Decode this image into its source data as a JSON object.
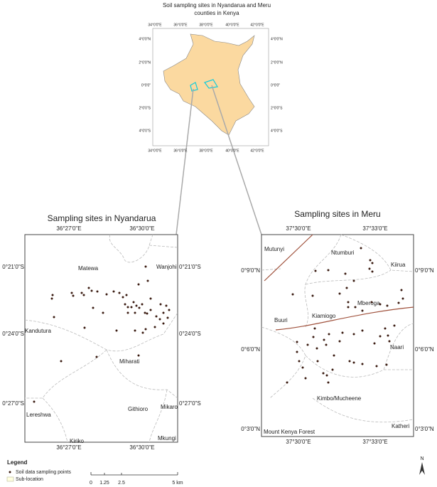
{
  "figure_title": [
    "Soil sampling sites in Nyandarua and Meru",
    "counties in Kenya"
  ],
  "inset": {
    "lat_labels": [
      "4°0'0\"N",
      "2°0'0\"N",
      "0°0'0\"",
      "2°0'0\"S",
      "4°0'0\"S"
    ],
    "lon_labels": [
      "34°0'0\"E",
      "36°0'0\"E",
      "38°0'0\"E",
      "40°0'0\"E",
      "42°0'0\"E"
    ]
  },
  "nyandarua": {
    "title": "Sampling sites in Nyandarua",
    "lon_labels": [
      "36°27'0\"E",
      "36°30'0\"E"
    ],
    "lat_labels": [
      "0°21'0\"S",
      "0°24'0\"S",
      "0°27'0\"S"
    ],
    "places": [
      "Wanjohi",
      "Matewa",
      "Kandutura",
      "Miharati",
      "Lereshwa",
      "Githioro",
      "Mikaro",
      "Kiriko",
      "Mkungi"
    ]
  },
  "meru": {
    "title": "Sampling sites in Meru",
    "lon_labels": [
      "37°30'0\"E",
      "37°33'0\"E"
    ],
    "lat_labels": [
      "0°9'0\"N",
      "0°6'0\"N",
      "0°3'0\"N"
    ],
    "places": [
      "Mutunyi",
      "Ntumburi",
      "Kiirua",
      "Mberoga",
      "Kiamiogo",
      "Buuri",
      "Naari",
      "Kimbo/Mucheene",
      "Katheri",
      "Mount Kenya Forest"
    ]
  },
  "legend": {
    "title": "Legend",
    "items": [
      "Soil data sampling points",
      "Sub-location"
    ]
  },
  "scale_bar": {
    "labels": [
      "0",
      "1.25",
      "2.5",
      "5 km"
    ]
  },
  "north": "N"
}
